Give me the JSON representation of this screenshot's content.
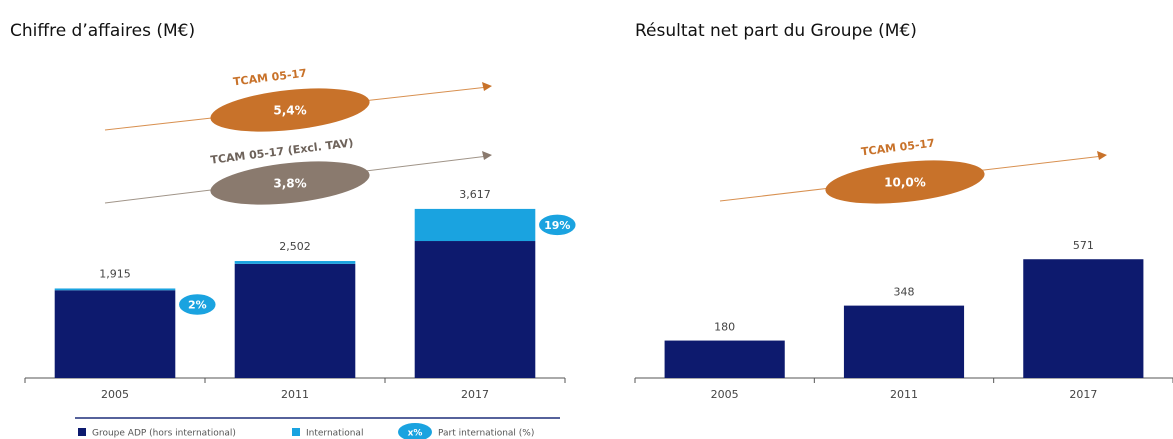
{
  "chart_data": [
    {
      "type": "bar",
      "title": "Chiffre d’affaires (M€)",
      "categories": [
        "2005",
        "2011",
        "2017"
      ],
      "series": [
        {
          "name": "Groupe ADP (hors international)",
          "color": "#0d1a6e",
          "values": [
            1877,
            2442,
            2930
          ]
        },
        {
          "name": "International",
          "color": "#1aa3e0",
          "values": [
            38,
            60,
            687
          ]
        }
      ],
      "totals": [
        1915,
        2502,
        3617
      ],
      "total_labels": [
        "1,915",
        "2,502",
        "3,617"
      ],
      "shares": [
        2,
        null,
        19
      ],
      "share_labels": [
        "2%",
        null,
        "19%"
      ],
      "share_legend": {
        "marker": "x%",
        "name": "Part international (%)"
      },
      "annotations": [
        {
          "label": "TCAM 05-17",
          "value": "5,4%"
        },
        {
          "label": "TCAM 05-17 (Excl. TAV)",
          "value": "3,8%"
        }
      ],
      "ylim": [
        0,
        4000
      ]
    },
    {
      "type": "bar",
      "title": "Résultat net part du Groupe (M€)",
      "categories": [
        "2005",
        "2011",
        "2017"
      ],
      "values": [
        180,
        348,
        571
      ],
      "color": "#0d1a6e",
      "annotations": [
        {
          "label": "TCAM 05-17",
          "value": "10,0%"
        }
      ],
      "ylim": [
        0,
        1000
      ]
    }
  ]
}
